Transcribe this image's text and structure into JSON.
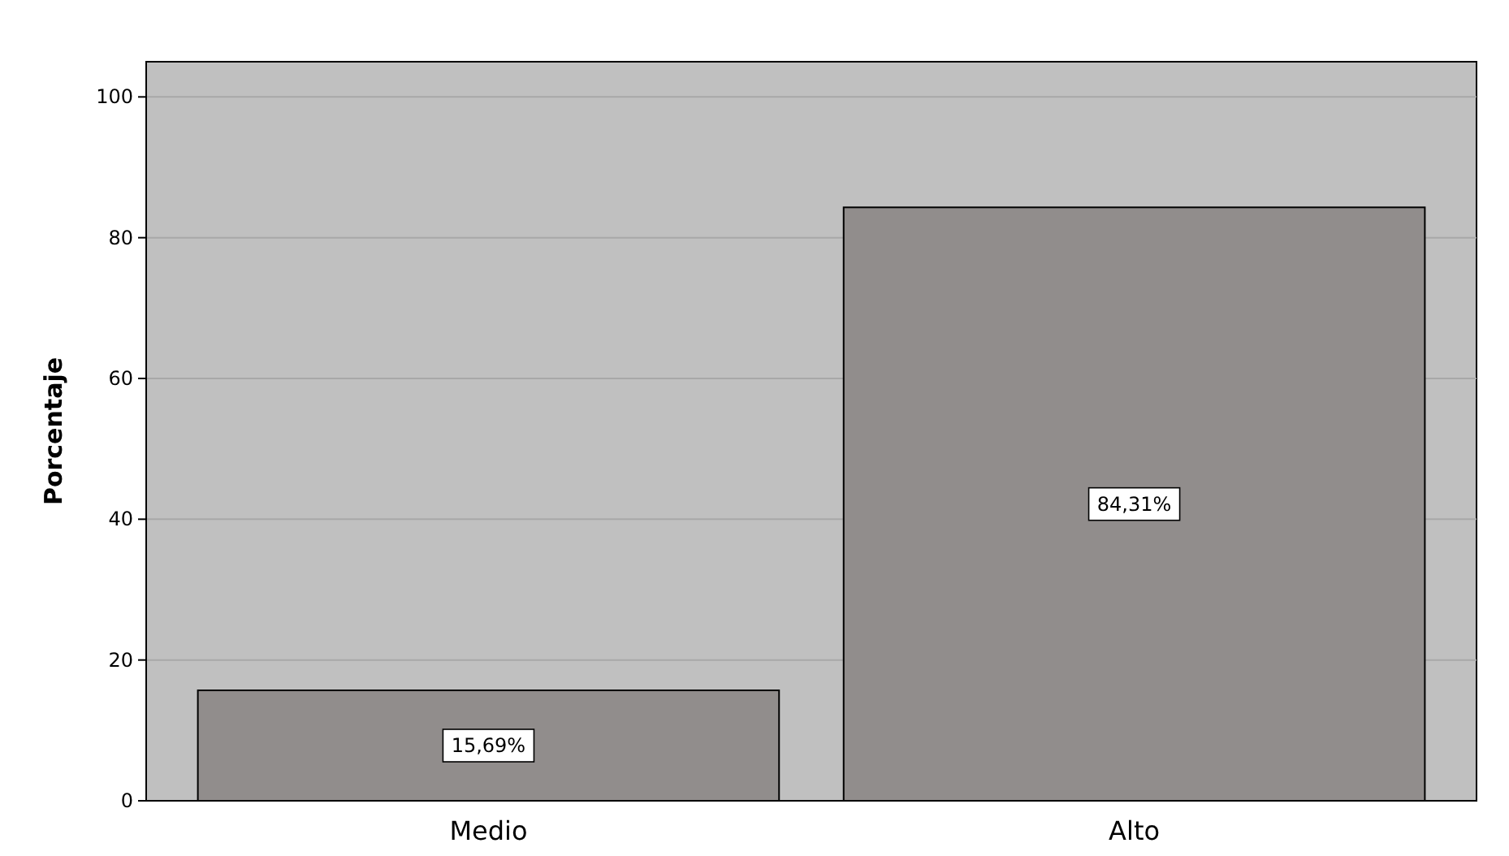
{
  "chart_data": {
    "type": "bar",
    "ylabel": "Porcentaje",
    "categories": [
      "Medio",
      "Alto"
    ],
    "values": [
      15.69,
      84.31
    ],
    "value_labels": [
      "15,69%",
      "84,31%"
    ],
    "color": "#918d8c",
    "ylim": [
      0,
      105
    ],
    "yticks": [
      0,
      20,
      40,
      60,
      80,
      100
    ],
    "grid": "y"
  }
}
